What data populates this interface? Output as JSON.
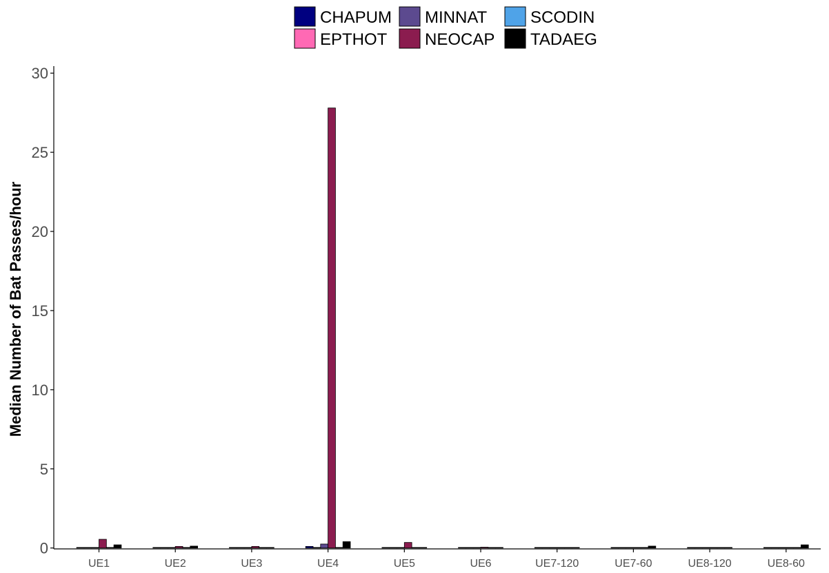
{
  "chart_data": {
    "type": "bar",
    "title": "",
    "xlabel": "",
    "ylabel": "Median Number of Bat Passes/hour",
    "ylim": [
      0,
      30
    ],
    "yticks": [
      0,
      5,
      10,
      15,
      20,
      25,
      30
    ],
    "grid": false,
    "legend_position": "top",
    "categories": [
      "UE1",
      "UE2",
      "UE3",
      "UE4",
      "UE5",
      "UE6",
      "UE7-120",
      "UE7-60",
      "UE8-120",
      "UE8-60"
    ],
    "series": [
      {
        "name": "CHAPUM",
        "color": "#000080",
        "values": [
          0,
          0,
          0,
          0.1,
          0,
          0,
          0,
          0,
          0,
          0
        ]
      },
      {
        "name": "EPTHOT",
        "color": "#ff69b4",
        "values": [
          0,
          0,
          0,
          0,
          0,
          0,
          0,
          0,
          0,
          0
        ]
      },
      {
        "name": "MINNAT",
        "color": "#5c4a8f",
        "values": [
          0,
          0,
          0,
          0.25,
          0,
          0,
          0,
          0,
          0,
          0
        ]
      },
      {
        "name": "NEOCAP",
        "color": "#8b1c4f",
        "values": [
          0.55,
          0.1,
          0.1,
          27.8,
          0.35,
          0.05,
          0,
          0,
          0,
          0
        ]
      },
      {
        "name": "SCODIN",
        "color": "#4fa3e8",
        "values": [
          0,
          0,
          0,
          0,
          0,
          0,
          0,
          0,
          0,
          0
        ]
      },
      {
        "name": "TADAEG",
        "color": "#000000",
        "values": [
          0.2,
          0.12,
          0,
          0.4,
          0,
          0,
          0,
          0.12,
          0,
          0.2
        ]
      }
    ]
  },
  "legend": {
    "items": [
      "CHAPUM",
      "MINNAT",
      "SCODIN",
      "EPTHOT",
      "NEOCAP",
      "TADAEG"
    ]
  }
}
